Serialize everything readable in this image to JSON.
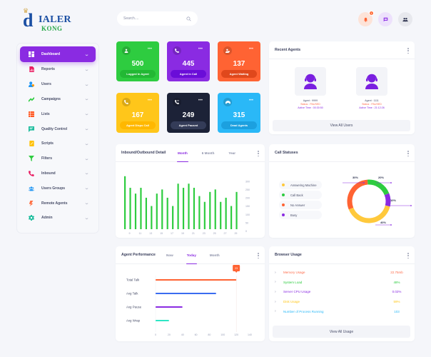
{
  "header": {
    "logo": {
      "top": "ialer",
      "bottom": "KONG",
      "d": "d",
      "crown": "ᴗ"
    },
    "search_placeholder": "Search....",
    "notification_count": "1",
    "icons": [
      "bell-icon",
      "chat-icon",
      "users-icon"
    ]
  },
  "sidebar": {
    "items": [
      {
        "label": "Dashboard",
        "icon": "dashboard-icon",
        "color": "#ffffff",
        "active": true
      },
      {
        "label": "Reports",
        "icon": "reports-icon",
        "color": "#e91e63"
      },
      {
        "label": "Users",
        "icon": "users-icon",
        "color": "#2196f3"
      },
      {
        "label": "Campaigns",
        "icon": "campaigns-icon",
        "color": "#2ecc40"
      },
      {
        "label": "Lists",
        "icon": "lists-icon",
        "color": "#ff5722"
      },
      {
        "label": "Quality Control",
        "icon": "quality-icon",
        "color": "#1abc9c"
      },
      {
        "label": "Scripts",
        "icon": "scripts-icon",
        "color": "#ffc107"
      },
      {
        "label": "Filters",
        "icon": "filter-icon",
        "color": "#2ecc40"
      },
      {
        "label": "Inbound",
        "icon": "phone-icon",
        "color": "#e91e63"
      },
      {
        "label": "Users Groups",
        "icon": "groups-icon",
        "color": "#2196f3"
      },
      {
        "label": "Remote Agents",
        "icon": "remote-icon",
        "color": "#ff7043"
      },
      {
        "label": "Admin",
        "icon": "gear-icon",
        "color": "#1abc9c"
      }
    ]
  },
  "stats": [
    {
      "value": "500",
      "label": "Logged In Agent",
      "bg": "#2ecc40",
      "btn": "#22b834",
      "icon": "agents-icon"
    },
    {
      "value": "445",
      "label": "Agent In Call",
      "bg": "#8a2be2",
      "btn": "#6a0dd8",
      "icon": "in-call-icon"
    },
    {
      "value": "137",
      "label": "Agent Waiting",
      "bg": "#ff6333",
      "btn": "#e0481c",
      "icon": "waiting-icon"
    },
    {
      "value": "167",
      "label": "Agent Dispo Call",
      "bg": "#ffc61a",
      "btn": "#ffb800",
      "icon": "phone-icon"
    },
    {
      "value": "249",
      "label": "Agent Paused",
      "bg": "#1c2237",
      "btn": "#343c58",
      "icon": "paused-icon"
    },
    {
      "value": "315",
      "label": "Dead Agents",
      "bg": "#2ab8f7",
      "btn": "#1ca0df",
      "icon": "dead-icon"
    }
  ],
  "recent_agents": {
    "title": "Recent Agents",
    "agents": [
      {
        "agent": "Agent : 9999",
        "status": "Status : PAUSED",
        "active": "Active Time : 00:30:50"
      },
      {
        "agent": "Agent : 1111",
        "status": "Status : PAUSED",
        "active": "Active Time : 21:12:26"
      }
    ],
    "view_all": "View All Users"
  },
  "inbound": {
    "title": "Inbound/Outbound Detail",
    "tabs": [
      "Month",
      "6 Month",
      "Year"
    ],
    "active_tab": "Month"
  },
  "call_statuses": {
    "title": "Call Statuses",
    "legend": [
      {
        "label": "Answering Machine",
        "color": "#ffc93c"
      },
      {
        "label": "Call Back",
        "color": "#2ecc40"
      },
      {
        "label": "No Answer",
        "color": "#ff6333"
      },
      {
        "label": "Busy",
        "color": "#8a2be2"
      }
    ]
  },
  "agent_performance": {
    "title": "Agent Performance",
    "tabs": [
      "Now",
      "Today",
      "Month"
    ],
    "active_tab": "Today",
    "tooltip": "23"
  },
  "browser_usage": {
    "title": "Browser Usage",
    "rows": [
      {
        "name": "Memory Usage",
        "value": "22.75mb",
        "color": "#ff6b4a"
      },
      {
        "name": "System Load",
        "value": "48%",
        "color": "#2ecc40"
      },
      {
        "name": "Server CPU Usage",
        "value": "0.02%",
        "color": "#8a2be2"
      },
      {
        "name": "Disk Usage",
        "value": "59%",
        "color": "#ffc61a"
      },
      {
        "name": "Number of Process Running",
        "value": "103",
        "color": "#2ab8f7"
      }
    ],
    "view_all": "View All Usage"
  },
  "chart_data": [
    {
      "type": "bar",
      "title": "Inbound/Outbound Detail",
      "categories": [
        "8",
        "9",
        "10",
        "11",
        "12",
        "13",
        "14",
        "15",
        "16",
        "17",
        "18",
        "19",
        "20",
        "21",
        "22",
        "23",
        "24",
        "25",
        "26",
        "27",
        "28",
        "29"
      ],
      "x_tick_labels": [
        "9",
        "11",
        "13",
        "15",
        "17",
        "19",
        "21",
        "23",
        "25",
        "27",
        "29"
      ],
      "values": [
        320,
        250,
        215,
        250,
        190,
        140,
        215,
        240,
        190,
        140,
        275,
        250,
        275,
        250,
        200,
        165,
        225,
        240,
        165,
        190,
        140,
        225
      ],
      "ylim": [
        0,
        300
      ],
      "y_ticks": [
        0,
        50,
        100,
        150,
        200,
        250,
        300
      ],
      "color": "#2ecc40",
      "grid": false
    },
    {
      "type": "pie",
      "title": "Call Statuses",
      "donut": true,
      "categories": [
        "Answering Machine",
        "Call Back",
        "No Answer",
        "Busy"
      ],
      "values": [
        40,
        20,
        30,
        10
      ],
      "colors": [
        "#ffc93c",
        "#2ecc40",
        "#ff6333",
        "#8a2be2"
      ],
      "labels": [
        "40%",
        "20%",
        "30%",
        "10%"
      ]
    },
    {
      "type": "bar",
      "orientation": "horizontal",
      "title": "Agent Performance",
      "categories": [
        "Total Talk",
        "Avg Talk",
        "Avg Pause",
        "Avg Wrap"
      ],
      "values": [
        120,
        90,
        40,
        20
      ],
      "colors": [
        "#ff6333",
        "#3a6cf0",
        "#8a2be2",
        "#2ee6c5"
      ],
      "xlim": [
        0,
        140
      ],
      "x_ticks": [
        0,
        20,
        40,
        60,
        80,
        100,
        120,
        140
      ],
      "tooltip": {
        "category": "Total Talk",
        "text": "23"
      }
    }
  ]
}
